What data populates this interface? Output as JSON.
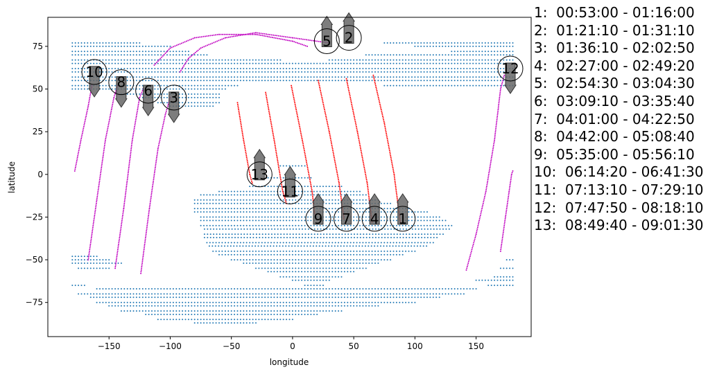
{
  "chart_data": {
    "type": "scatter",
    "xlabel": "longitude",
    "ylabel": "latitude",
    "xlim": [
      -200,
      195
    ],
    "ylim": [
      -95,
      92
    ],
    "x_ticks": [
      -150,
      -100,
      -50,
      0,
      50,
      100,
      150
    ],
    "y_ticks": [
      -75,
      -50,
      -25,
      0,
      25,
      50,
      75
    ],
    "grid": false,
    "colors": {
      "land": "#1f77b4",
      "track_red": "#ff0000",
      "track_magenta": "#c000c0",
      "arrow": "#666666"
    },
    "land_regions": [
      {
        "name": "north",
        "rows": [
          [
            77,
            -180,
            -125
          ],
          [
            75,
            -180,
            -100
          ],
          [
            72,
            -180,
            -85
          ],
          [
            70,
            -180,
            -70
          ],
          [
            67,
            -180,
            -10
          ],
          [
            67,
            55,
            180
          ],
          [
            65,
            -180,
            180
          ],
          [
            62,
            -180,
            180
          ],
          [
            60,
            -180,
            180
          ],
          [
            57,
            -180,
            180
          ],
          [
            55,
            -180,
            180
          ],
          [
            52,
            -180,
            -45
          ],
          [
            52,
            75,
            180
          ],
          [
            50,
            -180,
            -55
          ],
          [
            47,
            -140,
            -60
          ],
          [
            45,
            -125,
            -60
          ],
          [
            42,
            -110,
            -60
          ],
          [
            40,
            -100,
            -65
          ],
          [
            77,
            75,
            180
          ],
          [
            75,
            100,
            180
          ],
          [
            72,
            130,
            180
          ],
          [
            70,
            60,
            180
          ],
          [
            67,
            30,
            55
          ]
        ]
      },
      {
        "name": "south-america-africa",
        "rows": [
          [
            -7,
            -35,
            40
          ],
          [
            -10,
            -60,
            55
          ],
          [
            -12,
            -75,
            60
          ],
          [
            -15,
            -80,
            70
          ],
          [
            -17,
            -80,
            80
          ],
          [
            -20,
            -80,
            95
          ],
          [
            -22,
            -80,
            110
          ],
          [
            -25,
            -75,
            120
          ],
          [
            -27,
            -75,
            125
          ],
          [
            -30,
            -75,
            130
          ],
          [
            -32,
            -72,
            130
          ],
          [
            -35,
            -72,
            125
          ],
          [
            -37,
            -72,
            120
          ],
          [
            -40,
            -70,
            115
          ],
          [
            -42,
            -68,
            110
          ],
          [
            -45,
            -65,
            100
          ],
          [
            -47,
            -60,
            90
          ],
          [
            -50,
            -50,
            80
          ],
          [
            -52,
            -40,
            70
          ],
          [
            -55,
            -30,
            60
          ],
          [
            -57,
            -20,
            50
          ],
          [
            -60,
            -10,
            40
          ],
          [
            -62,
            0,
            30
          ],
          [
            -65,
            10,
            25
          ],
          [
            -2,
            -20,
            15
          ],
          [
            5,
            -10,
            10
          ]
        ]
      },
      {
        "name": "antarctica",
        "rows": [
          [
            -48,
            -180,
            -160
          ],
          [
            -50,
            -180,
            -150
          ],
          [
            -52,
            -180,
            -140
          ],
          [
            -55,
            -175,
            -150
          ],
          [
            -65,
            -180,
            -170
          ],
          [
            -67,
            -160,
            150
          ],
          [
            -70,
            -175,
            140
          ],
          [
            -72,
            -165,
            120
          ],
          [
            -75,
            -160,
            100
          ],
          [
            -77,
            -150,
            70
          ],
          [
            -80,
            -140,
            40
          ],
          [
            -82,
            -120,
            20
          ],
          [
            -85,
            -110,
            0
          ],
          [
            -87,
            -80,
            -30
          ],
          [
            -65,
            160,
            180
          ],
          [
            -60,
            165,
            180
          ],
          [
            -55,
            170,
            180
          ],
          [
            -50,
            175,
            180
          ],
          [
            -62,
            150,
            180
          ]
        ]
      }
    ],
    "tracks": [
      {
        "color": "red",
        "points": [
          [
            -45,
            42
          ],
          [
            -40,
            20
          ],
          [
            -35,
            0
          ],
          [
            -33,
            -5
          ]
        ]
      },
      {
        "color": "red",
        "points": [
          [
            -22,
            48
          ],
          [
            -15,
            20
          ],
          [
            -8,
            -10
          ],
          [
            -5,
            -17
          ]
        ]
      },
      {
        "color": "red",
        "points": [
          [
            -1,
            52
          ],
          [
            8,
            20
          ],
          [
            16,
            -10
          ],
          [
            18,
            -23
          ]
        ]
      },
      {
        "color": "red",
        "points": [
          [
            21,
            55
          ],
          [
            30,
            25
          ],
          [
            38,
            -5
          ],
          [
            42,
            -26
          ]
        ]
      },
      {
        "color": "red",
        "points": [
          [
            44,
            56
          ],
          [
            53,
            25
          ],
          [
            61,
            -5
          ],
          [
            65,
            -28
          ]
        ]
      },
      {
        "color": "red",
        "points": [
          [
            66,
            58
          ],
          [
            75,
            30
          ],
          [
            83,
            0
          ],
          [
            88,
            -28
          ]
        ]
      },
      {
        "color": "magenta",
        "points": [
          [
            -178,
            2
          ],
          [
            -173,
            20
          ],
          [
            -167,
            40
          ],
          [
            -164,
            52
          ]
        ]
      },
      {
        "color": "magenta",
        "points": [
          [
            -167,
            -50
          ],
          [
            -160,
            -15
          ],
          [
            -153,
            20
          ],
          [
            -146,
            45
          ],
          [
            -143,
            52
          ]
        ]
      },
      {
        "color": "magenta",
        "points": [
          [
            -145,
            -55
          ],
          [
            -138,
            -20
          ],
          [
            -131,
            20
          ],
          [
            -125,
            45
          ],
          [
            -122,
            50
          ]
        ]
      },
      {
        "color": "magenta",
        "points": [
          [
            -124,
            -58
          ],
          [
            -117,
            -20
          ],
          [
            -110,
            15
          ],
          [
            -104,
            35
          ],
          [
            -100,
            45
          ]
        ]
      },
      {
        "color": "magenta",
        "points": [
          [
            -113,
            64
          ],
          [
            -100,
            74
          ],
          [
            -80,
            80
          ],
          [
            -60,
            82
          ],
          [
            -30,
            82
          ],
          [
            0,
            78
          ],
          [
            12,
            75
          ]
        ]
      },
      {
        "color": "magenta",
        "points": [
          [
            -92,
            60
          ],
          [
            -85,
            68
          ],
          [
            -75,
            74
          ],
          [
            -55,
            80
          ],
          [
            -30,
            83
          ],
          [
            0,
            80
          ],
          [
            30,
            77
          ]
        ]
      },
      {
        "color": "magenta",
        "points": [
          [
            142,
            -56
          ],
          [
            150,
            -35
          ],
          [
            158,
            -10
          ],
          [
            165,
            20
          ],
          [
            170,
            50
          ],
          [
            173,
            58
          ]
        ]
      },
      {
        "color": "magenta",
        "points": [
          [
            170,
            -45
          ],
          [
            174,
            -25
          ],
          [
            177,
            -10
          ],
          [
            179,
            0
          ],
          [
            180,
            2
          ]
        ]
      }
    ],
    "markers": [
      {
        "label": "1",
        "x": 90,
        "y": -26,
        "arrow": "up"
      },
      {
        "label": "2",
        "x": 46,
        "y": 80,
        "arrow": "up"
      },
      {
        "label": "3",
        "x": -97,
        "y": 45,
        "arrow": "down"
      },
      {
        "label": "4",
        "x": 67,
        "y": -26,
        "arrow": "up"
      },
      {
        "label": "5",
        "x": 28,
        "y": 78,
        "arrow": "up"
      },
      {
        "label": "6",
        "x": -118,
        "y": 49,
        "arrow": "down"
      },
      {
        "label": "7",
        "x": 44,
        "y": -26,
        "arrow": "up"
      },
      {
        "label": "8",
        "x": -140,
        "y": 54,
        "arrow": "down"
      },
      {
        "label": "9",
        "x": 21,
        "y": -26,
        "arrow": "up"
      },
      {
        "label": "10",
        "x": -162,
        "y": 60,
        "arrow": "down"
      },
      {
        "label": "11",
        "x": -2,
        "y": -10,
        "arrow": "up"
      },
      {
        "label": "12",
        "x": 178,
        "y": 62,
        "arrow": "down"
      },
      {
        "label": "13",
        "x": -27,
        "y": 0,
        "arrow": "up"
      }
    ],
    "legend": [
      "1:  00:53:00 - 01:16:00",
      "2:  01:21:10 - 01:31:10",
      "3:  01:36:10 - 02:02:50",
      "4:  02:27:00 - 02:49:20",
      "5:  02:54:30 - 03:04:30",
      "6:  03:09:10 - 03:35:40",
      "7:  04:01:00 - 04:22:50",
      "8:  04:42:00 - 05:08:40",
      "9:  05:35:00 - 05:56:10",
      "10:  06:14:20 - 06:41:30",
      "11:  07:13:10 - 07:29:10",
      "12:  07:47:50 - 08:18:10",
      "13:  08:49:40 - 09:01:30"
    ]
  }
}
